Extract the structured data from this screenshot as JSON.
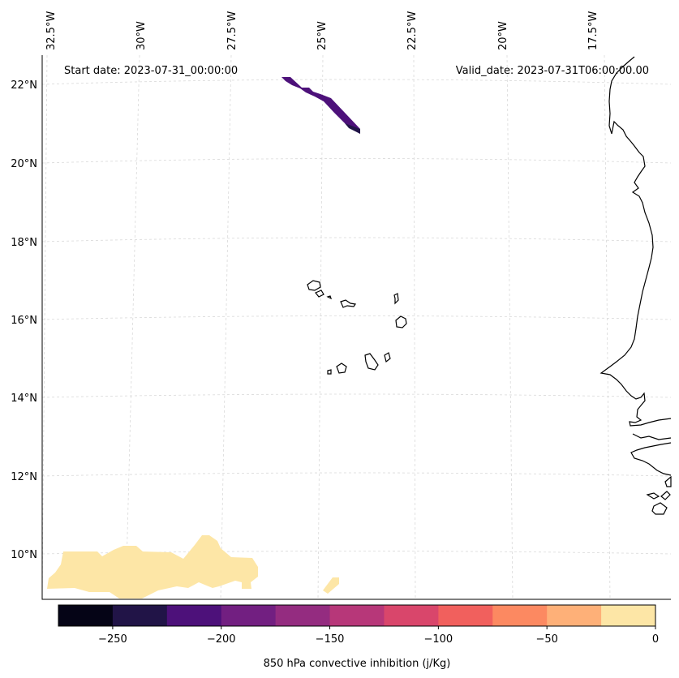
{
  "map": {
    "start_date": "Start date: 2023-07-31_00:00:00",
    "valid_date": "Valid_date: 2023-07-31T06:00:00.00",
    "lon_labels": [
      "32.5°W",
      "30°W",
      "27.5°W",
      "25°W",
      "22.5°W",
      "20°W",
      "17.5°W"
    ],
    "lat_labels": [
      "22°N",
      "20°N",
      "18°N",
      "16°N",
      "14°N",
      "12°N",
      "10°N"
    ],
    "land_color": "#000000",
    "grid_color": "#d9d9d9"
  },
  "colorbar": {
    "label": "850 hPa convective inhibition (j/Kg)",
    "tick_labels": [
      "−250",
      "−200",
      "−150",
      "−100",
      "−50",
      "0"
    ],
    "levels": [
      -275,
      -250,
      -225,
      -200,
      -175,
      -150,
      -125,
      -100,
      -75,
      -50,
      -25,
      0
    ],
    "colors": [
      "#050416",
      "#211447",
      "#4d117a",
      "#721f81",
      "#942c80",
      "#b73779",
      "#d9466b",
      "#f1605d",
      "#fc8961",
      "#feb078",
      "#fde6a6"
    ]
  }
}
